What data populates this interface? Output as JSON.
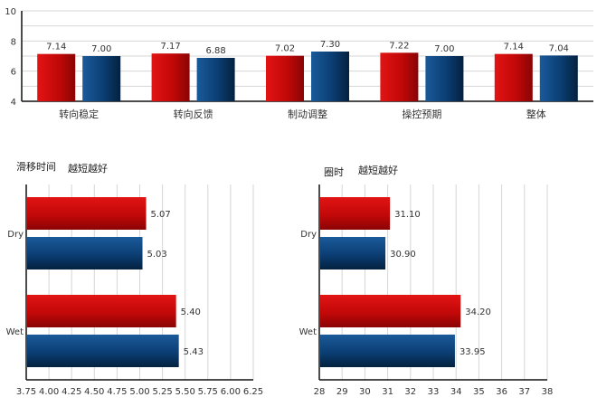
{
  "colors": {
    "red": "#cc0a0a",
    "blue": "#0b3e73",
    "grid": "#d6d6d6",
    "axis": "#111111"
  },
  "chart_data": [
    {
      "type": "bar",
      "orientation": "vertical",
      "categories": [
        "转向稳定",
        "转向反馈",
        "制动调整",
        "操控预期",
        "整体"
      ],
      "series": [
        {
          "values": [
            7.14,
            7.17,
            7.02,
            7.22,
            7.14
          ]
        },
        {
          "values": [
            7.0,
            6.88,
            7.3,
            7.0,
            7.04
          ]
        }
      ],
      "value_labels": [
        [
          "7.14",
          "7.17",
          "7.02",
          "7.22",
          "7.14"
        ],
        [
          "7.00",
          "6.88",
          "7.30",
          "7.00",
          "7.04"
        ]
      ],
      "ylim": [
        4,
        10
      ],
      "yticks": [
        "4",
        "6",
        "8",
        "10"
      ],
      "grid": true
    },
    {
      "type": "bar",
      "orientation": "horizontal",
      "title": "滑移时间",
      "subtitle": "越短越好",
      "categories": [
        "Dry",
        "Wet"
      ],
      "series": [
        {
          "values": [
            5.07,
            5.4
          ]
        },
        {
          "values": [
            5.03,
            5.43
          ]
        }
      ],
      "value_labels": [
        [
          "5.07",
          "5.40"
        ],
        [
          "5.03",
          "5.43"
        ]
      ],
      "xlim": [
        3.75,
        6.25
      ],
      "xticks": [
        "3.75",
        "4.00",
        "4.25",
        "4.50",
        "4.75",
        "5.00",
        "5.25",
        "5.50",
        "5.75",
        "6.00",
        "6.25"
      ],
      "grid": true
    },
    {
      "type": "bar",
      "orientation": "horizontal",
      "title": "圈时",
      "subtitle": "越短越好",
      "categories": [
        "Dry",
        "Wet"
      ],
      "series": [
        {
          "values": [
            31.1,
            34.2
          ]
        },
        {
          "values": [
            30.9,
            33.95
          ]
        }
      ],
      "value_labels": [
        [
          "31.10",
          "34.20"
        ],
        [
          "30.90",
          "33.95"
        ]
      ],
      "xlim": [
        28,
        38
      ],
      "xticks": [
        "28",
        "29",
        "30",
        "31",
        "32",
        "33",
        "34",
        "35",
        "36",
        "37",
        "38"
      ],
      "grid": true
    }
  ]
}
